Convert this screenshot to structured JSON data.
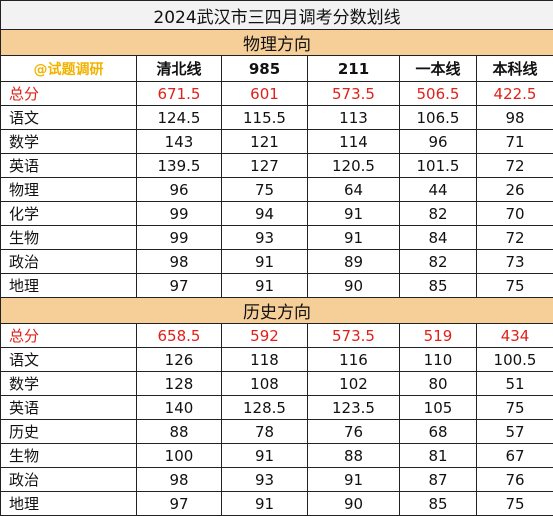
{
  "title": "2024武汉市三四月调考分数划线",
  "watermark": "@试题调研",
  "columns": [
    "清北线",
    "985",
    "211",
    "一本线",
    "本科线"
  ],
  "sections": [
    {
      "name": "物理方向",
      "rows": [
        {
          "subject": "总分",
          "values": [
            "671.5",
            "601",
            "573.5",
            "506.5",
            "422.5"
          ]
        },
        {
          "subject": "语文",
          "values": [
            "124.5",
            "115.5",
            "113",
            "106.5",
            "98"
          ]
        },
        {
          "subject": "数学",
          "values": [
            "143",
            "121",
            "114",
            "96",
            "71"
          ]
        },
        {
          "subject": "英语",
          "values": [
            "139.5",
            "127",
            "120.5",
            "101.5",
            "72"
          ]
        },
        {
          "subject": "物理",
          "values": [
            "96",
            "75",
            "64",
            "44",
            "26"
          ]
        },
        {
          "subject": "化学",
          "values": [
            "99",
            "94",
            "91",
            "82",
            "70"
          ]
        },
        {
          "subject": "生物",
          "values": [
            "99",
            "93",
            "91",
            "84",
            "72"
          ]
        },
        {
          "subject": "政治",
          "values": [
            "98",
            "91",
            "89",
            "82",
            "73"
          ]
        },
        {
          "subject": "地理",
          "values": [
            "97",
            "91",
            "90",
            "85",
            "75"
          ]
        }
      ]
    },
    {
      "name": "历史方向",
      "rows": [
        {
          "subject": "总分",
          "values": [
            "658.5",
            "592",
            "573.5",
            "519",
            "434"
          ]
        },
        {
          "subject": "语文",
          "values": [
            "126",
            "118",
            "116",
            "110",
            "100.5"
          ]
        },
        {
          "subject": "数学",
          "values": [
            "128",
            "108",
            "102",
            "80",
            "51"
          ]
        },
        {
          "subject": "英语",
          "values": [
            "140",
            "128.5",
            "123.5",
            "105",
            "75"
          ]
        },
        {
          "subject": "历史",
          "values": [
            "88",
            "78",
            "76",
            "68",
            "57"
          ]
        },
        {
          "subject": "生物",
          "values": [
            "100",
            "91",
            "88",
            "81",
            "67"
          ]
        },
        {
          "subject": "政治",
          "values": [
            "98",
            "93",
            "91",
            "87",
            "76"
          ]
        },
        {
          "subject": "地理",
          "values": [
            "97",
            "91",
            "90",
            "85",
            "75"
          ]
        }
      ]
    }
  ],
  "colors": {
    "section_bg": "#f6cf98",
    "title_bg": "#f2f2f2",
    "total_text": "#e0201a",
    "watermark_text": "#f2b300"
  }
}
